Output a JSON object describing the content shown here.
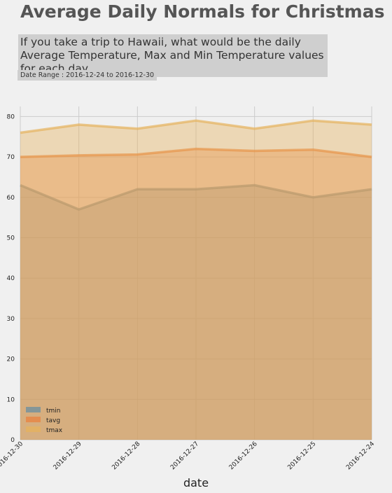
{
  "header": {
    "title": "Average Daily Normals for Christmas",
    "subtitle": "If you take a trip to Hawaii, what would be the daily Average Temperature, Max and Min Temperature values for each day",
    "date_range": "Date Range : 2016-12-24 to 2016-12-30"
  },
  "chart_data": {
    "type": "area",
    "categories": [
      "2016-12-30",
      "2016-12-29",
      "2016-12-28",
      "2016-12-27",
      "2016-12-26",
      "2016-12-25",
      "2016-12-24"
    ],
    "series": [
      {
        "name": "tmin",
        "values": [
          63,
          57,
          62,
          62,
          63,
          60,
          62
        ],
        "color": "#6a8ea0"
      },
      {
        "name": "tavg",
        "values": [
          70,
          70.4,
          70.6,
          72,
          71.5,
          71.8,
          70
        ],
        "color": "#e8823f"
      },
      {
        "name": "tmax",
        "values": [
          76,
          78,
          77,
          79,
          77,
          79,
          78
        ],
        "color": "#e6b25c"
      }
    ],
    "xlabel": "date",
    "ylabel": "",
    "ylim": [
      0,
      82.5
    ],
    "yticks": [
      0,
      10,
      20,
      30,
      40,
      50,
      60,
      70,
      80
    ],
    "grid": true,
    "stacked": false,
    "legend_position": "lower-left"
  }
}
